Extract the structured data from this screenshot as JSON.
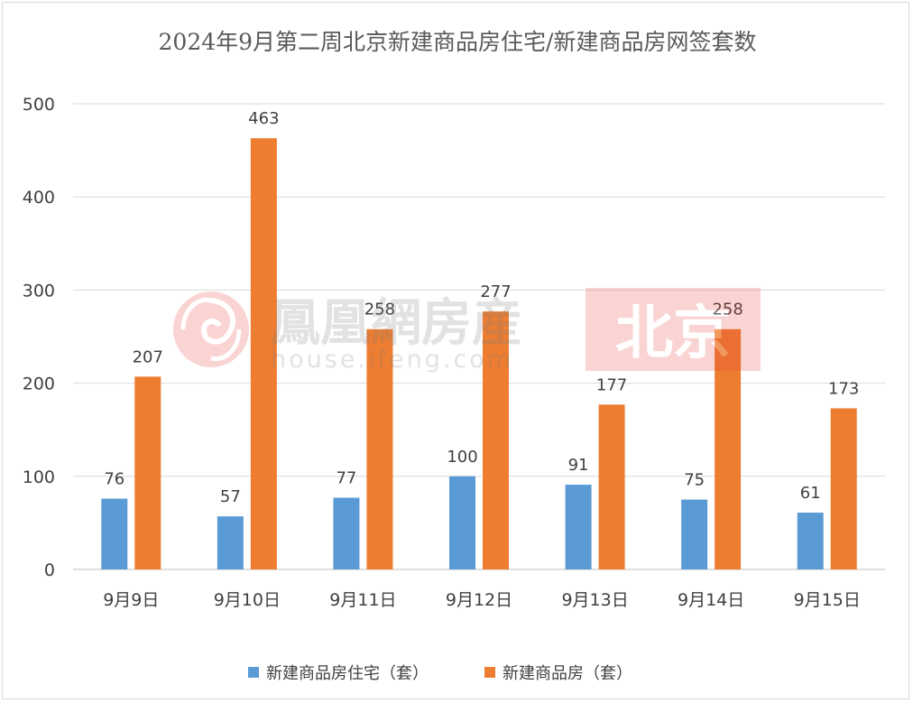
{
  "chart_data": {
    "type": "bar",
    "title": "2024年9月第二周北京新建商品房住宅/新建商品房网签套数",
    "categories": [
      "9月9日",
      "9月10日",
      "9月11日",
      "9月12日",
      "9月13日",
      "9月14日",
      "9月15日"
    ],
    "series": [
      {
        "name": "新建商品房住宅（套）",
        "values": [
          76,
          57,
          77,
          100,
          91,
          75,
          61
        ],
        "color": "#5b9bd5"
      },
      {
        "name": "新建商品房（套）",
        "values": [
          207,
          463,
          258,
          277,
          177,
          258,
          173
        ],
        "color": "#ed7d31"
      }
    ],
    "ylim": [
      0,
      500
    ],
    "yticks": [
      0,
      100,
      200,
      300,
      400,
      500
    ],
    "grid": true,
    "legend": "bottom",
    "data_labels": true
  },
  "watermark": {
    "brand": "鳳凰網房産",
    "url": "house.ifeng.com",
    "city": "北京",
    "color": "#e8403a"
  }
}
